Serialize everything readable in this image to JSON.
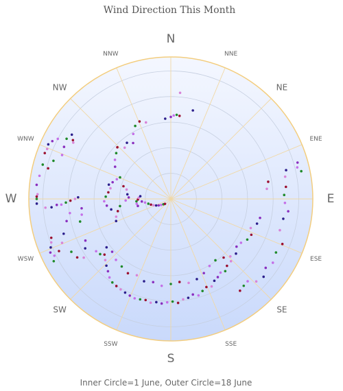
{
  "chart_data": {
    "type": "scatter",
    "polar": true,
    "title": "Wind Direction This Month",
    "footer": "Inner Circle=1 June, Outer Circle=18 June",
    "radial_axis": {
      "inner_label": "1 June",
      "outer_label": "18 June",
      "range": [
        1,
        18
      ],
      "rings": 5
    },
    "direction_labels": [
      "N",
      "NNE",
      "NE",
      "ENE",
      "E",
      "ESE",
      "SE",
      "SSE",
      "S",
      "SSW",
      "SW",
      "WSW",
      "W",
      "WNW",
      "NW",
      "NNW"
    ],
    "grid": true,
    "colors": {
      "plot_fill_top": "#f4f7ff",
      "plot_fill_bottom": "#c9d9fb",
      "rim": "#f3cd7e",
      "spokes": "#f1d8a4",
      "rings": "#c6cfe0",
      "series": [
        "#2c1f8c",
        "#8a2fbf",
        "#c46fe8",
        "#1f8a2a",
        "#9b0f2f",
        "#d884d8"
      ]
    },
    "points": [
      {
        "angle": 270,
        "day": 17.6
      },
      {
        "angle": 271,
        "day": 17.6
      },
      {
        "angle": 272,
        "day": 17.5
      },
      {
        "angle": 268,
        "day": 17.6
      },
      {
        "angle": 276,
        "day": 17.7
      },
      {
        "angle": 280,
        "day": 17.5
      },
      {
        "angle": 285,
        "day": 17.4
      },
      {
        "angle": 290,
        "day": 17.6
      },
      {
        "angle": 292,
        "day": 17.5
      },
      {
        "angle": 294,
        "day": 17.6
      },
      {
        "angle": 296,
        "day": 17.3
      },
      {
        "angle": 298,
        "day": 16.8
      },
      {
        "angle": 300,
        "day": 15.8
      },
      {
        "angle": 301,
        "day": 15.0
      },
      {
        "angle": 300,
        "day": 14.8
      },
      {
        "angle": 303,
        "day": 15.5
      },
      {
        "angle": 296,
        "day": 15.6
      },
      {
        "angle": 292,
        "day": 15.4
      },
      {
        "angle": 288,
        "day": 16.2
      },
      {
        "angle": 284,
        "day": 16.6
      },
      {
        "angle": 266,
        "day": 16.5
      },
      {
        "angle": 266,
        "day": 15.7
      },
      {
        "angle": 267,
        "day": 15.0
      },
      {
        "angle": 267,
        "day": 14.4
      },
      {
        "angle": 268,
        "day": 13.8
      },
      {
        "angle": 269,
        "day": 13.2
      },
      {
        "angle": 270,
        "day": 12.6
      },
      {
        "angle": 271,
        "day": 12.2
      },
      {
        "angle": 264,
        "day": 11.8
      },
      {
        "angle": 260,
        "day": 11.9
      },
      {
        "angle": 256,
        "day": 12.3
      },
      {
        "angle": 252,
        "day": 16.5
      },
      {
        "angle": 250,
        "day": 16.7
      },
      {
        "angle": 248,
        "day": 17.0
      },
      {
        "angle": 246,
        "day": 17.3
      },
      {
        "angle": 244,
        "day": 17.0
      },
      {
        "angle": 242,
        "day": 17.4
      },
      {
        "angle": 245,
        "day": 16.2
      },
      {
        "angle": 248,
        "day": 15.4
      },
      {
        "angle": 252,
        "day": 14.8
      },
      {
        "angle": 258,
        "day": 14.0
      },
      {
        "angle": 262,
        "day": 13.4
      },
      {
        "angle": 242,
        "day": 14.8
      },
      {
        "angle": 238,
        "day": 14.5
      },
      {
        "angle": 236,
        "day": 13.8
      },
      {
        "angle": 240,
        "day": 13.0
      },
      {
        "angle": 244,
        "day": 12.5
      },
      {
        "angle": 235,
        "day": 12.0
      },
      {
        "angle": 232,
        "day": 11.8
      },
      {
        "angle": 230,
        "day": 11.4
      },
      {
        "angle": 227,
        "day": 11.8
      },
      {
        "angle": 224,
        "day": 12.2
      },
      {
        "angle": 221,
        "day": 12.6
      },
      {
        "angle": 218,
        "day": 13.1
      },
      {
        "angle": 215,
        "day": 13.4
      },
      {
        "angle": 212,
        "day": 13.5
      },
      {
        "angle": 209,
        "day": 13.6
      },
      {
        "angle": 206,
        "day": 13.7
      },
      {
        "angle": 203,
        "day": 13.8
      },
      {
        "angle": 200,
        "day": 13.9
      },
      {
        "angle": 197,
        "day": 13.8
      },
      {
        "angle": 194,
        "day": 13.7
      },
      {
        "angle": 191,
        "day": 13.9
      },
      {
        "angle": 188,
        "day": 13.7
      },
      {
        "angle": 185,
        "day": 13.8
      },
      {
        "angle": 182,
        "day": 13.6
      },
      {
        "angle": 179,
        "day": 13.5
      },
      {
        "angle": 176,
        "day": 13.7
      },
      {
        "angle": 173,
        "day": 13.3
      },
      {
        "angle": 170,
        "day": 13.2
      },
      {
        "angle": 167,
        "day": 12.9
      },
      {
        "angle": 164,
        "day": 13.2
      },
      {
        "angle": 161,
        "day": 12.8
      },
      {
        "angle": 158,
        "day": 12.5
      },
      {
        "angle": 155,
        "day": 12.7
      },
      {
        "angle": 152,
        "day": 12.2
      },
      {
        "angle": 149,
        "day": 12.0
      },
      {
        "angle": 146,
        "day": 11.7
      },
      {
        "angle": 143,
        "day": 11.9
      },
      {
        "angle": 140,
        "day": 11.5
      },
      {
        "angle": 136,
        "day": 11.4
      },
      {
        "angle": 233,
        "day": 10.6
      },
      {
        "angle": 228,
        "day": 10.4
      },
      {
        "angle": 222,
        "day": 10.8
      },
      {
        "angle": 216,
        "day": 11.0
      },
      {
        "angle": 210,
        "day": 11.3
      },
      {
        "angle": 204,
        "day": 11.0
      },
      {
        "angle": 198,
        "day": 11.4
      },
      {
        "angle": 192,
        "day": 11.2
      },
      {
        "angle": 186,
        "day": 11.5
      },
      {
        "angle": 180,
        "day": 11.2
      },
      {
        "angle": 174,
        "day": 11.0
      },
      {
        "angle": 168,
        "day": 11.3
      },
      {
        "angle": 162,
        "day": 11.1
      },
      {
        "angle": 156,
        "day": 10.7
      },
      {
        "angle": 150,
        "day": 10.2
      },
      {
        "angle": 144,
        "day": 10.0
      },
      {
        "angle": 138,
        "day": 10.4
      },
      {
        "angle": 134,
        "day": 10.9
      },
      {
        "angle": 130,
        "day": 11.2
      },
      {
        "angle": 126,
        "day": 10.7
      },
      {
        "angle": 122,
        "day": 10.9
      },
      {
        "angle": 118,
        "day": 11.4
      },
      {
        "angle": 114,
        "day": 11.6
      },
      {
        "angle": 110,
        "day": 11.2
      },
      {
        "angle": 106,
        "day": 11.8
      },
      {
        "angle": 102,
        "day": 12.0
      },
      {
        "angle": 137,
        "day": 14.8
      },
      {
        "angle": 140,
        "day": 14.9
      },
      {
        "angle": 143,
        "day": 15.1
      },
      {
        "angle": 134,
        "day": 15.6
      },
      {
        "angle": 130,
        "day": 15.9
      },
      {
        "angle": 126,
        "day": 15.4
      },
      {
        "angle": 122,
        "day": 15.8
      },
      {
        "angle": 117,
        "day": 15.5
      },
      {
        "angle": 112,
        "day": 15.8
      },
      {
        "angle": 106,
        "day": 14.9
      },
      {
        "angle": 100,
        "day": 15.0
      },
      {
        "angle": 96,
        "day": 15.5
      },
      {
        "angle": 92,
        "day": 15.0
      },
      {
        "angle": 88,
        "day": 14.9
      },
      {
        "angle": 84,
        "day": 15.2
      },
      {
        "angle": 79,
        "day": 15.3
      },
      {
        "angle": 76,
        "day": 15.6
      },
      {
        "angle": 74,
        "day": 17.3
      },
      {
        "angle": 76,
        "day": 17.1
      },
      {
        "angle": 78,
        "day": 17.5
      },
      {
        "angle": 80,
        "day": 13.0
      },
      {
        "angle": 84,
        "day": 12.7
      },
      {
        "angle": 260,
        "day": 8.0
      },
      {
        "angle": 264,
        "day": 8.5
      },
      {
        "angle": 268,
        "day": 8.8
      },
      {
        "angle": 272,
        "day": 8.6
      },
      {
        "angle": 276,
        "day": 8.3
      },
      {
        "angle": 280,
        "day": 8.1
      },
      {
        "angle": 283,
        "day": 8.4
      },
      {
        "angle": 286,
        "day": 8.0
      },
      {
        "angle": 290,
        "day": 7.6
      },
      {
        "angle": 293,
        "day": 7.3
      },
      {
        "angle": 285,
        "day": 6.5
      },
      {
        "angle": 282,
        "day": 6.0
      },
      {
        "angle": 276,
        "day": 5.8
      },
      {
        "angle": 272,
        "day": 5.6
      },
      {
        "angle": 268,
        "day": 6.0
      },
      {
        "angle": 262,
        "day": 6.8
      },
      {
        "angle": 257,
        "day": 7.2
      },
      {
        "angle": 252,
        "day": 7.6
      },
      {
        "angle": 248,
        "day": 7.8
      },
      {
        "angle": 300,
        "day": 8.5
      },
      {
        "angle": 305,
        "day": 9.0
      },
      {
        "angle": 310,
        "day": 9.4
      },
      {
        "angle": 314,
        "day": 9.8
      },
      {
        "angle": 318,
        "day": 9.1
      },
      {
        "angle": 322,
        "day": 9.4
      },
      {
        "angle": 326,
        "day": 8.9
      },
      {
        "angle": 330,
        "day": 9.9
      },
      {
        "angle": 334,
        "day": 10.7
      },
      {
        "angle": 338,
        "day": 11.0
      },
      {
        "angle": 342,
        "day": 10.6
      },
      {
        "angle": 356,
        "day": 10.6
      },
      {
        "angle": 0,
        "day": 10.8
      },
      {
        "angle": 2,
        "day": 11.0
      },
      {
        "angle": 4,
        "day": 11.1
      },
      {
        "angle": 6,
        "day": 11.0
      },
      {
        "angle": 5,
        "day": 14.0
      },
      {
        "angle": 14,
        "day": 12.0
      },
      {
        "angle": 258,
        "day": 4.5
      },
      {
        "angle": 262,
        "day": 4.6
      },
      {
        "angle": 266,
        "day": 4.6
      },
      {
        "angle": 269,
        "day": 4.4
      },
      {
        "angle": 272,
        "day": 4.3
      },
      {
        "angle": 275,
        "day": 4.1
      },
      {
        "angle": 265,
        "day": 3.9
      },
      {
        "angle": 262,
        "day": 3.5
      },
      {
        "angle": 258,
        "day": 3.1
      },
      {
        "angle": 254,
        "day": 2.8
      },
      {
        "angle": 250,
        "day": 2.5
      },
      {
        "angle": 246,
        "day": 2.2
      },
      {
        "angle": 242,
        "day": 1.9
      },
      {
        "angle": 238,
        "day": 1.6
      },
      {
        "angle": 234,
        "day": 1.3
      },
      {
        "angle": 230,
        "day": 1.1
      }
    ]
  }
}
